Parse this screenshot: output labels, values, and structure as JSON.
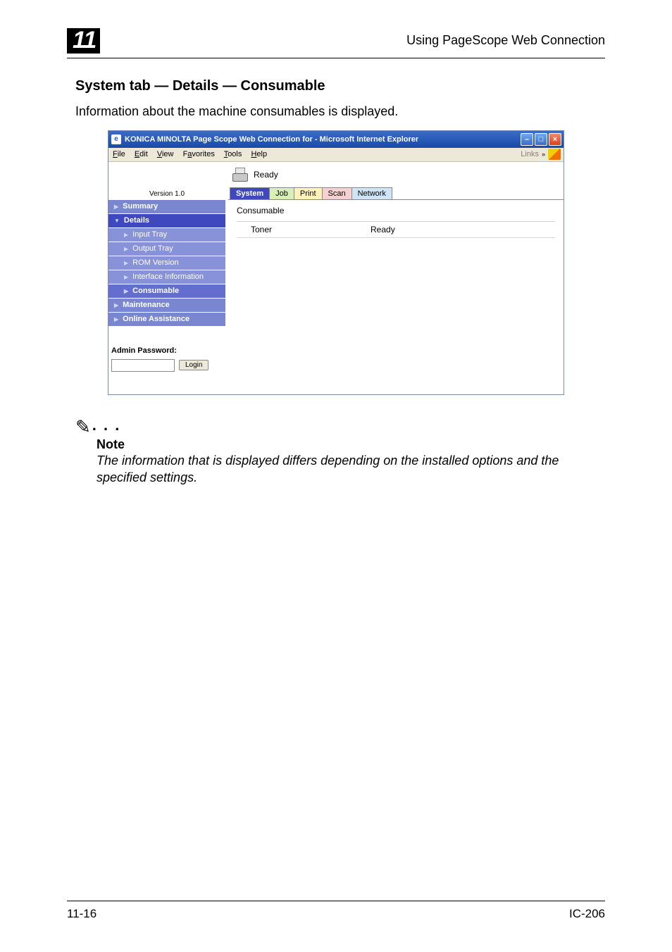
{
  "header": {
    "chapter": "11",
    "title": "Using PageScope Web Connection"
  },
  "section": {
    "title": "System tab — Details — Consumable",
    "intro": "Information about the machine consumables is displayed."
  },
  "browser": {
    "title": "KONICA MINOLTA Page Scope Web Connection for        - Microsoft Internet Explorer",
    "menu": {
      "file": "File",
      "edit": "Edit",
      "view": "View",
      "favorites": "Favorites",
      "tools": "Tools",
      "help": "Help"
    },
    "links_label": "Links"
  },
  "status": {
    "text": "Ready"
  },
  "tabs": {
    "system": "System",
    "job": "Job",
    "print": "Print",
    "scan": "Scan",
    "network": "Network"
  },
  "sidebar": {
    "version": "Version 1.0",
    "summary": "Summary",
    "details": "Details",
    "input_tray": "Input Tray",
    "output_tray": "Output Tray",
    "rom_version": "ROM Version",
    "interface_info": "Interface Information",
    "consumable": "Consumable",
    "maintenance": "Maintenance",
    "online_assist": "Online Assistance",
    "admin_pw_label": "Admin Password:",
    "login_btn": "Login"
  },
  "panel": {
    "heading": "Consumable",
    "row_label": "Toner",
    "row_value": "Ready"
  },
  "note": {
    "label": "Note",
    "body": "The information that is displayed differs depending on the installed options and the specified settings."
  },
  "footer": {
    "left": "11-16",
    "right": "IC-206"
  }
}
